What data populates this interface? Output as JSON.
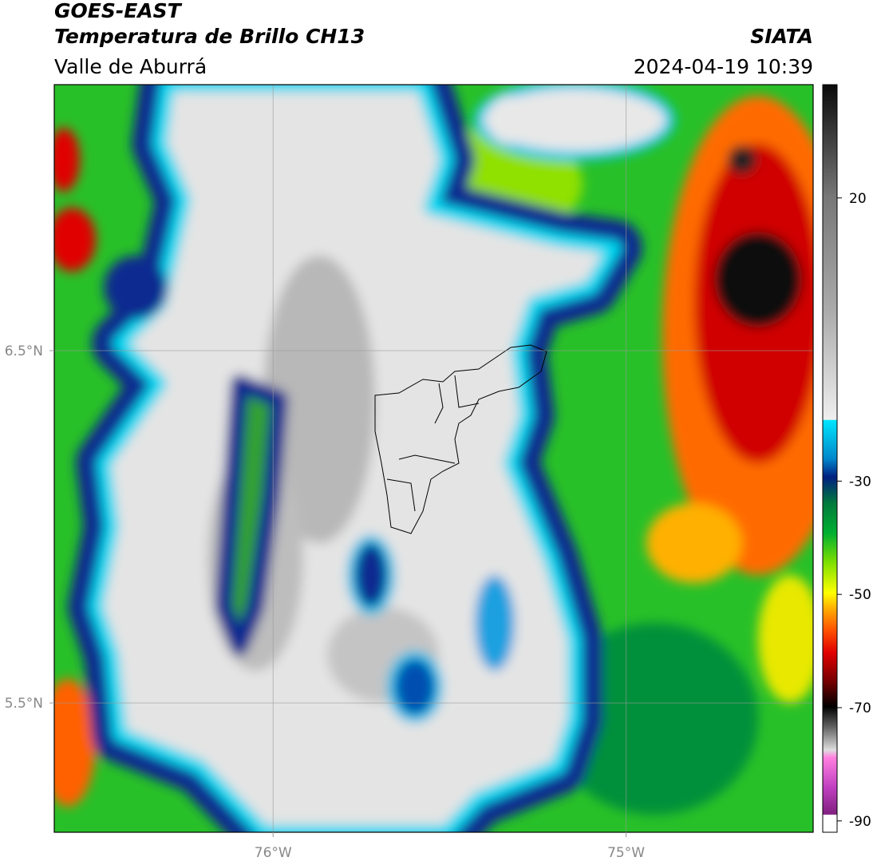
{
  "header": {
    "satellite": "GOES-EAST",
    "product": "Temperatura de Brillo CH13",
    "region": "Valle de Aburrá",
    "source": "SIATA",
    "datetime": "2024-04-19 10:39"
  },
  "map": {
    "xlim": [
      -76.62,
      -74.47
    ],
    "ylim": [
      5.133,
      7.255
    ],
    "xticks": [
      {
        "value": -76,
        "label": "76°W"
      },
      {
        "value": -75,
        "label": "75°W"
      }
    ],
    "yticks": [
      {
        "value": 6.5,
        "label": "6.5°N"
      },
      {
        "value": 5.5,
        "label": "5.5°N"
      }
    ],
    "grid": true
  },
  "colorbar": {
    "lim": [
      -92,
      40
    ],
    "ticks": [
      20,
      -30,
      -50,
      -70,
      -90
    ]
  }
}
